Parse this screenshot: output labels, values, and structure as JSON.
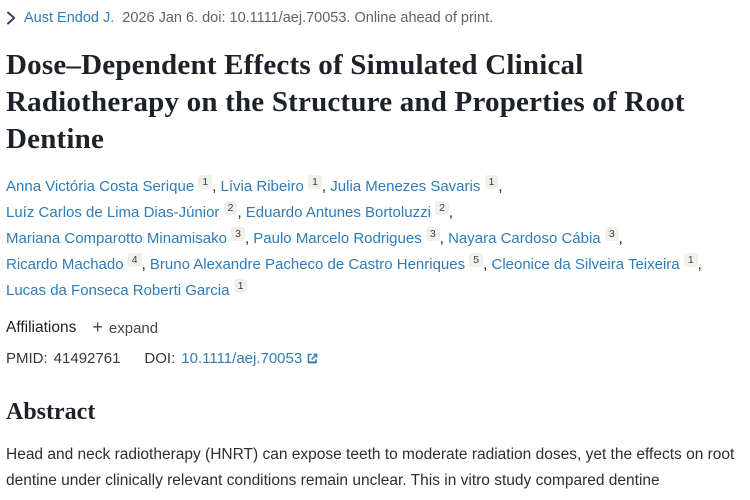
{
  "colors": {
    "page_bg": "#ffffff",
    "link_blue": "#2e7cb8",
    "dark_text": "#212121",
    "title_text": "#1d2129",
    "gray_text": "#5e6369",
    "sup_bg": "#f1efe9",
    "chevron": "#3c3f5e"
  },
  "journal_bar": {
    "journal_link": "Aust Endod J.",
    "citation_rest": "2026 Jan 6. doi: 10.1111/aej.70053. Online ahead of print."
  },
  "title_lines": [
    "Dose–Dependent Effects of Simulated Clinical",
    "Radiotherapy on the Structure and Properties of Root",
    "Dentine"
  ],
  "authors": [
    {
      "name": "Anna Victória Costa Serique",
      "sup": "1",
      "break_after": false
    },
    {
      "name": "Lívia Ribeiro",
      "sup": "1",
      "break_after": false
    },
    {
      "name": "Julia Menezes Savaris",
      "sup": "1",
      "break_after": true
    },
    {
      "name": "Luíz Carlos de Lima Dias-Júnior",
      "sup": "2",
      "break_after": false
    },
    {
      "name": "Eduardo Antunes Bortoluzzi",
      "sup": "2",
      "break_after": true
    },
    {
      "name": "Mariana Comparotto Minamisako",
      "sup": "3",
      "break_after": false
    },
    {
      "name": "Paulo Marcelo Rodrigues",
      "sup": "3",
      "break_after": false
    },
    {
      "name": "Nayara Cardoso Cábia",
      "sup": "3",
      "break_after": true
    },
    {
      "name": "Ricardo Machado",
      "sup": "4",
      "break_after": false
    },
    {
      "name": "Bruno Alexandre Pacheco de Castro Henriques",
      "sup": "5",
      "break_after": false
    },
    {
      "name": "Cleonice da Silveira Teixeira",
      "sup": "1",
      "break_after": true
    },
    {
      "name": "Lucas da Fonseca Roberti Garcia",
      "sup": "1",
      "break_after": false
    }
  ],
  "affiliations": {
    "label": "Affiliations",
    "plus": "+",
    "expand_label": "expand"
  },
  "identifiers": {
    "pmid_label": "PMID:",
    "pmid_value": "41492761",
    "doi_label": "DOI:",
    "doi_link": "10.1111/aej.70053"
  },
  "abstract": {
    "heading": "Abstract",
    "text": "Head and neck radiotherapy (HNRT) can expose teeth to moderate radiation doses, yet the effects on root dentine under clinically relevant conditions remain unclear. This in vitro study compared dentine"
  }
}
